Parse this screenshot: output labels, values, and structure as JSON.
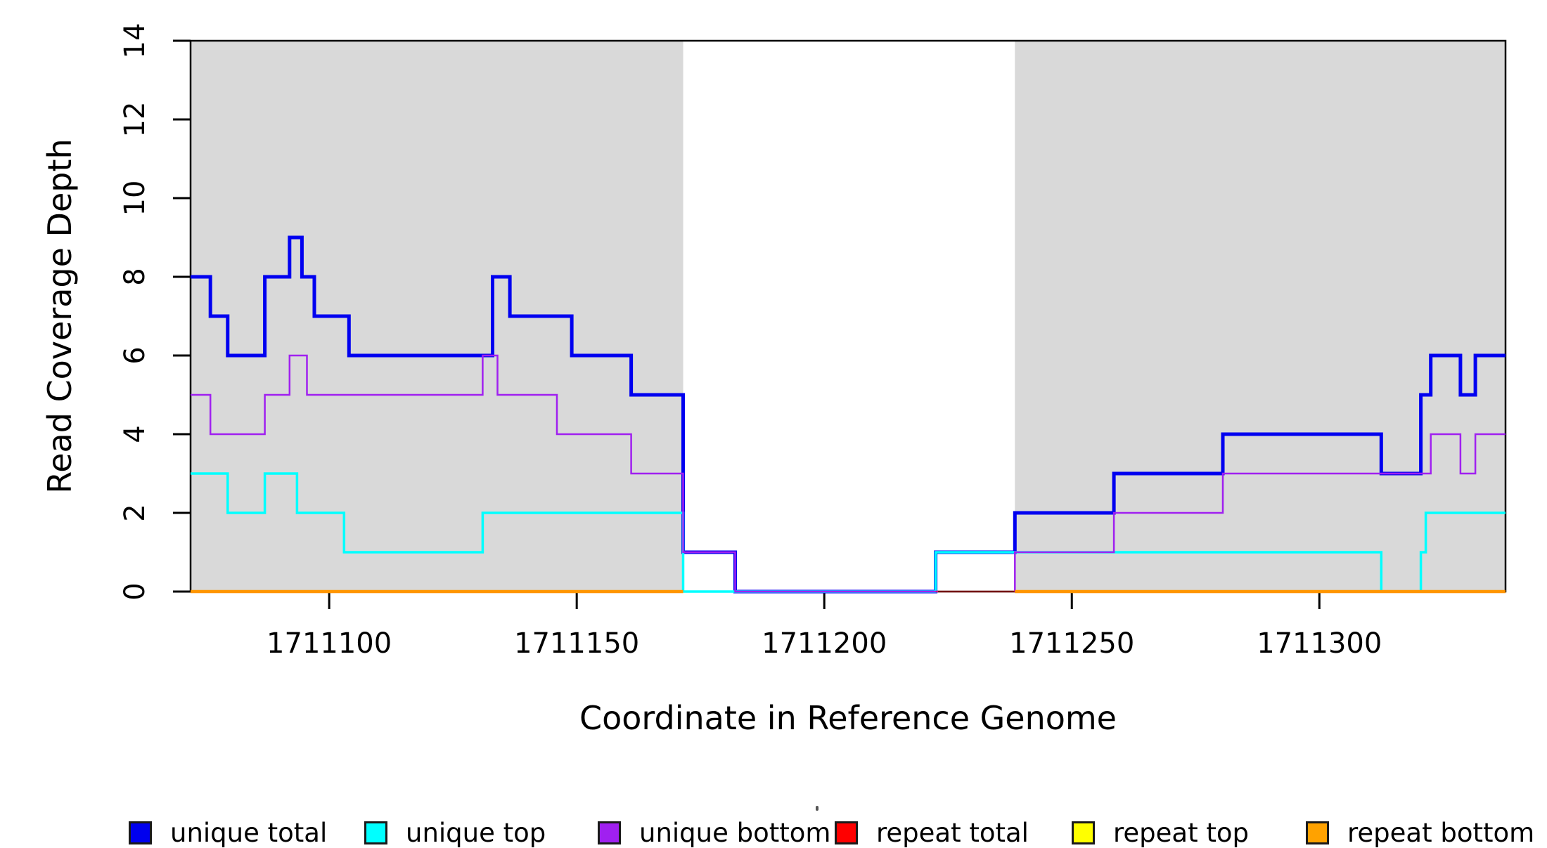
{
  "chart_data": {
    "type": "line",
    "subtype": "step-coverage",
    "title": "",
    "xlabel": "Coordinate in Reference Genome",
    "ylabel": "Read Coverage Depth",
    "xlim": [
      1711072,
      1711337.6
    ],
    "ylim": [
      0,
      14
    ],
    "x_ticks": [
      "1711100",
      "1711150",
      "1711200",
      "1711250",
      "1711300"
    ],
    "x_tick_values": [
      1711100,
      1711150,
      1711200,
      1711250,
      1711300
    ],
    "y_ticks": [
      "0",
      "2",
      "4",
      "6",
      "8",
      "10",
      "12",
      "14"
    ],
    "y_tick_values": [
      0,
      2,
      4,
      6,
      8,
      10,
      12,
      14
    ],
    "grid": false,
    "plot_background": "#ffffff",
    "frame_color": "#000000",
    "shaded_regions": [
      {
        "x1": 1711072,
        "x2": 1711171.5,
        "color": "#d9d9d9"
      },
      {
        "x1": 1711238.5,
        "x2": 1711337.6,
        "color": "#d9d9d9"
      }
    ],
    "legend_position": "bottom",
    "series": [
      {
        "name": "unique total",
        "color": "#0000f0",
        "line_width": 5,
        "opacity": 1,
        "segments": [
          [
            1711072,
            1711076,
            8
          ],
          [
            1711076,
            1711079.5,
            7
          ],
          [
            1711079.5,
            1711087,
            6
          ],
          [
            1711087,
            1711092,
            8
          ],
          [
            1711092,
            1711094.5,
            9
          ],
          [
            1711094.5,
            1711097,
            8
          ],
          [
            1711097,
            1711104,
            7
          ],
          [
            1711104,
            1711133,
            6
          ],
          [
            1711133,
            1711136.5,
            8
          ],
          [
            1711136.5,
            1711149,
            7
          ],
          [
            1711149,
            1711161,
            6
          ],
          [
            1711161,
            1711171.5,
            5
          ],
          [
            1711171.5,
            1711182,
            1
          ],
          [
            1711182,
            1711222.5,
            0
          ],
          [
            1711222.5,
            1711238.5,
            1
          ],
          [
            1711238.5,
            1711258.5,
            2
          ],
          [
            1711258.5,
            1711280.5,
            3
          ],
          [
            1711280.5,
            1711312.5,
            4
          ],
          [
            1711312.5,
            1711320.5,
            3
          ],
          [
            1711320.5,
            1711322.5,
            5
          ],
          [
            1711322.5,
            1711328.5,
            6
          ],
          [
            1711328.5,
            1711331.5,
            5
          ],
          [
            1711331.5,
            1711337.6,
            6
          ]
        ]
      },
      {
        "name": "unique top",
        "color": "#00ffff",
        "line_width": 3.5,
        "opacity": 1,
        "segments": [
          [
            1711072,
            1711079.5,
            3
          ],
          [
            1711079.5,
            1711087,
            2
          ],
          [
            1711087,
            1711093.5,
            3
          ],
          [
            1711093.5,
            1711103,
            2
          ],
          [
            1711103,
            1711131,
            1
          ],
          [
            1711131,
            1711171.5,
            2
          ],
          [
            1711171.5,
            1711222.5,
            0
          ],
          [
            1711222.5,
            1711312.5,
            1
          ],
          [
            1711312.5,
            1711320.5,
            0
          ],
          [
            1711320.5,
            1711321.5,
            1
          ],
          [
            1711321.5,
            1711337.6,
            2
          ]
        ]
      },
      {
        "name": "unique bottom",
        "color": "#a020f0",
        "line_width": 2.5,
        "opacity": 1,
        "segments": [
          [
            1711072,
            1711076,
            5
          ],
          [
            1711076,
            1711087,
            4
          ],
          [
            1711087,
            1711092,
            5
          ],
          [
            1711092,
            1711095.5,
            6
          ],
          [
            1711095.5,
            1711131,
            5
          ],
          [
            1711131,
            1711134,
            6
          ],
          [
            1711134,
            1711146,
            5
          ],
          [
            1711146,
            1711161,
            4
          ],
          [
            1711161,
            1711171.5,
            3
          ],
          [
            1711171.5,
            1711182,
            1
          ],
          [
            1711182,
            1711223,
            0
          ],
          [
            1711238.5,
            1711238.5,
            0
          ],
          [
            1711238.5,
            1711258.5,
            1
          ],
          [
            1711258.5,
            1711280.5,
            2
          ],
          [
            1711280.5,
            1711322.5,
            3
          ],
          [
            1711322.5,
            1711328.5,
            4
          ],
          [
            1711328.5,
            1711331.5,
            3
          ],
          [
            1711331.5,
            1711337.6,
            4
          ]
        ]
      },
      {
        "name": "repeat total",
        "color": "#ff0000",
        "line_width": 2.5,
        "opacity": 0.45,
        "segments": [
          [
            1711222.5,
            1711238.5,
            0
          ]
        ]
      },
      {
        "name": "repeat top",
        "color": "#ffff00",
        "line_width": 2.5,
        "opacity": 1,
        "segments": []
      },
      {
        "name": "repeat bottom",
        "color": "#ff9600",
        "line_width": 4.5,
        "opacity": 1,
        "segments": [
          [
            1711072,
            1711171.5,
            0
          ],
          [
            1711238.5,
            1711337.6,
            0
          ]
        ]
      }
    ],
    "legend": [
      {
        "label": "unique total",
        "color": "#0000ee"
      },
      {
        "label": "unique top",
        "color": "#00ffff"
      },
      {
        "label": "unique bottom",
        "color": "#a020f0"
      },
      {
        "label": "repeat total",
        "color": "#ff0000"
      },
      {
        "label": "repeat top",
        "color": "#ffff00"
      },
      {
        "label": "repeat bottom",
        "color": "#ffa200"
      }
    ]
  }
}
